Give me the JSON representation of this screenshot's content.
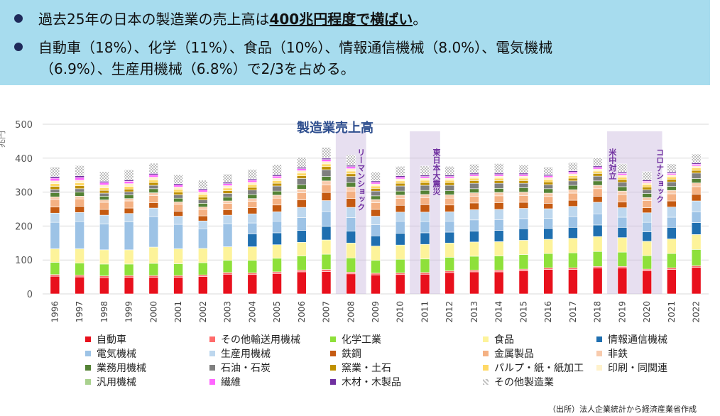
{
  "banner": {
    "bullet1_pre": "過去25年の日本の製造業の売上高は",
    "bullet1_highlight": "400兆円程度で横ばい",
    "bullet1_post": "。",
    "bullet2_line1": "自動車（18%）、化学（11%）、食品（10%）、情報通信機械（8.0%）、電気機械",
    "bullet2_line2": "（6.9%）、生産用機械（6.8%）で2/3を占める。"
  },
  "source": "（出所）法人企業統計から経済産業省作成",
  "chart_data": {
    "type": "bar",
    "stacked": true,
    "title": "製造業売上高",
    "ylabel": "兆円",
    "ylim": [
      0,
      500
    ],
    "yticks": [
      0,
      100,
      200,
      300,
      400,
      500
    ],
    "grid": true,
    "legend_position": "bottom",
    "categories": [
      "1996",
      "1997",
      "1998",
      "1999",
      "2000",
      "2001",
      "2002",
      "2003",
      "2004",
      "2005",
      "2006",
      "2007",
      "2008",
      "2009",
      "2010",
      "2011",
      "2012",
      "2013",
      "2014",
      "2015",
      "2016",
      "2017",
      "2018",
      "2019",
      "2020",
      "2021",
      "2022"
    ],
    "annotations": [
      {
        "year": "2008",
        "text": "リーマンショック"
      },
      {
        "year": "2011",
        "text": "東日本大震災"
      },
      {
        "year": "2019",
        "text": "米中対立"
      },
      {
        "year": "2020",
        "text": "コロナショック"
      }
    ],
    "series": [
      {
        "name": "自動車",
        "color": "#e8101c",
        "values": [
          52,
          50,
          48,
          49,
          49,
          49,
          51,
          58,
          57,
          60,
          65,
          66,
          59,
          56,
          57,
          58,
          63,
          65,
          65,
          68,
          72,
          72,
          76,
          76,
          68,
          72,
          78
        ]
      },
      {
        "name": "その他輸送用機械",
        "color": "#ff6b6b",
        "values": [
          5,
          5,
          5,
          5,
          5,
          5,
          5,
          5,
          5,
          5,
          5,
          6,
          5,
          5,
          5,
          5,
          5,
          5,
          5,
          5,
          5,
          5,
          5,
          5,
          5,
          5,
          5
        ]
      },
      {
        "name": "化学工業",
        "color": "#8ee03a",
        "values": [
          36,
          36,
          35,
          34,
          36,
          35,
          36,
          36,
          37,
          40,
          42,
          45,
          42,
          38,
          40,
          40,
          40,
          41,
          42,
          43,
          42,
          44,
          44,
          42,
          40,
          42,
          48
        ]
      },
      {
        "name": "食品",
        "color": "#fdf39a",
        "values": [
          40,
          42,
          42,
          42,
          48,
          44,
          42,
          40,
          40,
          40,
          40,
          42,
          44,
          42,
          42,
          43,
          42,
          42,
          42,
          42,
          42,
          43,
          44,
          43,
          42,
          43,
          44
        ]
      },
      {
        "name": "情報通信機械",
        "color": "#1f6fb0",
        "values": [
          0,
          0,
          0,
          0,
          0,
          0,
          0,
          0,
          38,
          35,
          35,
          40,
          35,
          30,
          35,
          34,
          32,
          32,
          33,
          34,
          32,
          32,
          34,
          30,
          28,
          34,
          35
        ]
      },
      {
        "name": "電気機械",
        "color": "#9dc3e6",
        "values": [
          78,
          80,
          76,
          82,
          90,
          72,
          58,
          68,
          32,
          34,
          38,
          44,
          40,
          33,
          35,
          33,
          32,
          33,
          32,
          30,
          30,
          32,
          33,
          30,
          28,
          30,
          32
        ]
      },
      {
        "name": "生産用機械",
        "color": "#bdd7ee",
        "values": [
          27,
          27,
          26,
          25,
          25,
          24,
          23,
          25,
          27,
          28,
          30,
          32,
          30,
          25,
          27,
          28,
          28,
          30,
          30,
          30,
          28,
          30,
          34,
          28,
          28,
          30,
          32
        ]
      },
      {
        "name": "鉄鋼",
        "color": "#c55a11",
        "values": [
          18,
          18,
          17,
          16,
          16,
          15,
          15,
          16,
          18,
          20,
          22,
          24,
          26,
          20,
          20,
          22,
          20,
          20,
          20,
          18,
          16,
          18,
          18,
          17,
          15,
          18,
          20
        ]
      },
      {
        "name": "金属製品",
        "color": "#f4b183",
        "values": [
          22,
          22,
          21,
          21,
          21,
          20,
          19,
          19,
          19,
          20,
          21,
          22,
          22,
          20,
          20,
          20,
          20,
          20,
          20,
          20,
          20,
          21,
          22,
          22,
          21,
          21,
          22
        ]
      },
      {
        "name": "非鉄",
        "color": "#f8cbad",
        "values": [
          8,
          8,
          7,
          7,
          8,
          7,
          7,
          7,
          8,
          9,
          11,
          12,
          12,
          9,
          10,
          10,
          10,
          10,
          10,
          10,
          10,
          10,
          10,
          10,
          9,
          10,
          11
        ]
      },
      {
        "name": "業務用機械",
        "color": "#548235",
        "values": [
          12,
          12,
          11,
          11,
          12,
          11,
          11,
          11,
          12,
          12,
          13,
          13,
          13,
          11,
          12,
          12,
          12,
          12,
          12,
          13,
          13,
          13,
          13,
          13,
          12,
          12,
          13
        ]
      },
      {
        "name": "石油・石炭",
        "color": "#7f7f7f",
        "values": [
          10,
          10,
          9,
          9,
          10,
          10,
          10,
          11,
          13,
          15,
          18,
          20,
          18,
          14,
          15,
          15,
          16,
          16,
          15,
          13,
          12,
          13,
          14,
          13,
          11,
          13,
          16
        ]
      },
      {
        "name": "窯業・土石",
        "color": "#bf9000",
        "values": [
          9,
          9,
          8,
          8,
          8,
          8,
          8,
          8,
          8,
          8,
          8,
          9,
          8,
          8,
          8,
          8,
          8,
          8,
          8,
          8,
          8,
          8,
          8,
          8,
          8,
          8,
          8
        ]
      },
      {
        "name": "パルプ・紙・紙加工",
        "color": "#ffd966",
        "values": [
          8,
          8,
          8,
          8,
          8,
          8,
          8,
          8,
          8,
          8,
          8,
          8,
          8,
          7,
          7,
          7,
          7,
          7,
          7,
          7,
          7,
          7,
          7,
          7,
          7,
          7,
          7
        ]
      },
      {
        "name": "印刷・同関連",
        "color": "#fff2cc",
        "values": [
          8,
          8,
          8,
          8,
          8,
          7,
          7,
          7,
          7,
          7,
          7,
          7,
          7,
          6,
          6,
          6,
          6,
          6,
          6,
          6,
          6,
          6,
          6,
          6,
          6,
          6,
          6
        ]
      },
      {
        "name": "汎用機械",
        "color": "#a9d18e",
        "values": [
          0,
          0,
          0,
          0,
          0,
          0,
          0,
          0,
          0,
          0,
          0,
          0,
          0,
          0,
          0,
          0,
          0,
          0,
          0,
          0,
          0,
          0,
          0,
          0,
          0,
          0,
          0
        ]
      },
      {
        "name": "繊維",
        "color": "#ff66ff",
        "values": [
          8,
          8,
          7,
          7,
          7,
          6,
          6,
          6,
          6,
          6,
          6,
          6,
          6,
          5,
          5,
          5,
          5,
          5,
          5,
          5,
          5,
          5,
          5,
          5,
          4,
          4,
          5
        ]
      },
      {
        "name": "木材・木製品",
        "color": "#7030a0",
        "values": [
          5,
          5,
          4,
          4,
          4,
          4,
          4,
          4,
          4,
          4,
          4,
          4,
          4,
          4,
          4,
          4,
          4,
          4,
          4,
          4,
          4,
          4,
          4,
          4,
          4,
          4,
          4
        ]
      },
      {
        "name": "その他製造業",
        "color": "#cfcfcf",
        "values": [
          28,
          30,
          28,
          30,
          30,
          26,
          25,
          24,
          28,
          30,
          30,
          32,
          30,
          26,
          28,
          27,
          26,
          26,
          28,
          24,
          22,
          24,
          24,
          24,
          24,
          24,
          26
        ]
      }
    ]
  }
}
